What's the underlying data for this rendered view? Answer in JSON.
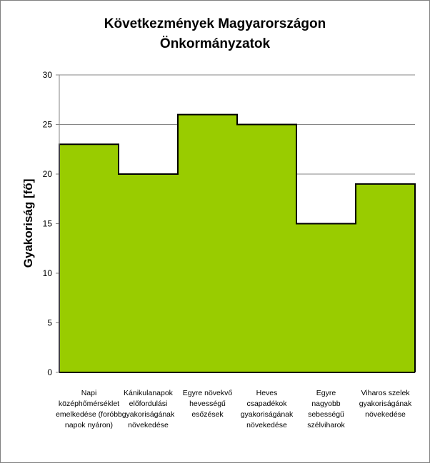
{
  "chart_data": {
    "type": "bar",
    "title_lines": [
      "Következmények Magyarországon",
      "Önkormányzatok"
    ],
    "xlabel": "",
    "ylabel": "Gyakoriság [fő]",
    "ylim": [
      0,
      30
    ],
    "yticks": [
      0,
      5,
      10,
      15,
      20,
      25,
      30
    ],
    "grid": true,
    "legend": "none",
    "bar_color": "#99CC00",
    "categories": [
      [
        "Napi",
        "középhőmérséklet",
        "emelkedése (foróbb",
        "napok nyáron)"
      ],
      [
        "Kánikulanapok",
        "előfordulási",
        "gyakoriságának",
        "növekedése"
      ],
      [
        "Egyre növekvő",
        "hevességű",
        "esőzések"
      ],
      [
        "Heves",
        "csapadékok",
        "gyakoriságának",
        "növekedése"
      ],
      [
        "Egyre",
        "nagyobb",
        "sebességű",
        "szélviharok"
      ],
      [
        "Viharos szelek",
        "gyakoriságának",
        "növekedése"
      ]
    ],
    "values": [
      23,
      20,
      26,
      25,
      15,
      19
    ]
  }
}
